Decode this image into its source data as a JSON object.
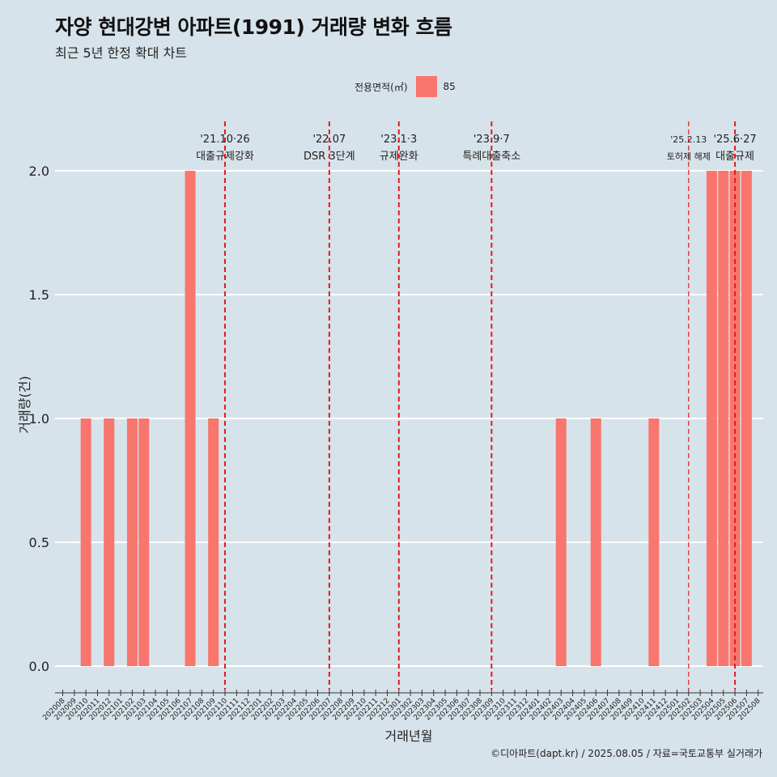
{
  "header": {
    "title": "자양 현대강변 아파트(1991) 거래량 변화 흐름",
    "subtitle": "최근 5년 한정 확대 차트"
  },
  "legend": {
    "title": "전용면적(㎡)",
    "entries": [
      {
        "label": "85",
        "color": "#f8766d"
      }
    ]
  },
  "caption": "©디아파트(dapt.kr) / 2025.08.05 / 자료=국토교통부 실거래가",
  "chart_data": {
    "type": "bar",
    "xlabel": "거래년월",
    "ylabel": "거래량(건)",
    "ylim": [
      0,
      2
    ],
    "yticks": [
      "0.0",
      "0.5",
      "1.0",
      "1.5",
      "2.0"
    ],
    "grid": true,
    "legend_position": "top",
    "categories": [
      "202008",
      "202009",
      "202010",
      "202011",
      "202012",
      "202101",
      "202102",
      "202103",
      "202104",
      "202105",
      "202106",
      "202107",
      "202108",
      "202109",
      "202110",
      "202111",
      "202112",
      "202201",
      "202202",
      "202203",
      "202204",
      "202205",
      "202206",
      "202207",
      "202208",
      "202209",
      "202210",
      "202211",
      "202212",
      "202301",
      "202302",
      "202303",
      "202304",
      "202305",
      "202306",
      "202307",
      "202308",
      "202309",
      "202310",
      "202311",
      "202312",
      "202401",
      "202402",
      "202403",
      "202404",
      "202405",
      "202406",
      "202407",
      "202408",
      "202409",
      "202410",
      "202411",
      "202412",
      "202501",
      "202502",
      "202503",
      "202504",
      "202505",
      "202506",
      "202507",
      "202508"
    ],
    "series": [
      {
        "name": "85",
        "color": "#f8766d",
        "values": [
          0,
          0,
          1,
          0,
          1,
          0,
          1,
          1,
          0,
          0,
          0,
          2,
          0,
          1,
          0,
          0,
          0,
          0,
          0,
          0,
          0,
          0,
          0,
          0,
          0,
          0,
          0,
          0,
          0,
          0,
          0,
          0,
          0,
          0,
          0,
          0,
          0,
          0,
          0,
          0,
          0,
          0,
          0,
          1,
          0,
          0,
          1,
          0,
          0,
          0,
          0,
          1,
          0,
          0,
          0,
          0,
          2,
          2,
          2,
          2,
          0
        ]
      }
    ],
    "annotations": [
      {
        "x": "202110",
        "date": "'21.10·26",
        "text": "대출규제강화",
        "thin": false
      },
      {
        "x": "202207",
        "date": "'22.07",
        "text": "DSR 3단계",
        "thin": false
      },
      {
        "x": "202301",
        "date": "'23.1·3",
        "text": "규제완화",
        "thin": false
      },
      {
        "x": "202309",
        "date": "'23.9·7",
        "text": "특례대출축소",
        "thin": false
      },
      {
        "x": "202502",
        "date": "'25.2.13",
        "text": "토허제 해제",
        "thin": true
      },
      {
        "x": "202506",
        "date": "'25.6·27",
        "text": "대출규제",
        "thin": false
      }
    ]
  }
}
